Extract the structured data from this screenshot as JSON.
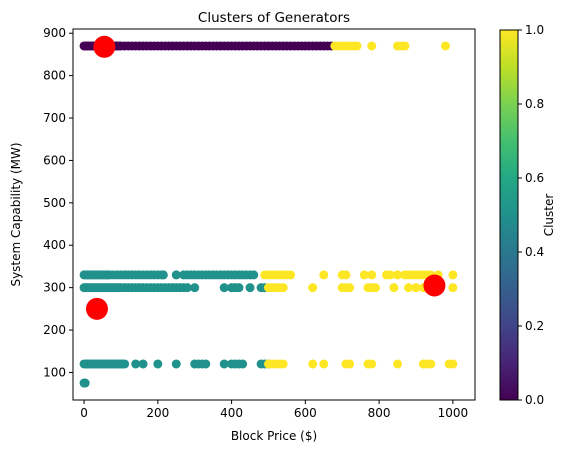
{
  "chart_data": {
    "type": "scatter",
    "title": "Clusters of Generators",
    "xlabel": "Block Price ($)",
    "ylabel": "System Capability (MW)",
    "xlim": [
      -30,
      1060
    ],
    "ylim": [
      35,
      910
    ],
    "xticks": [
      0,
      200,
      400,
      600,
      800,
      1000
    ],
    "xtick_labels": [
      "0",
      "200",
      "400",
      "600",
      "800",
      "1000"
    ],
    "yticks": [
      100,
      200,
      300,
      400,
      500,
      600,
      700,
      800,
      900
    ],
    "ytick_labels": [
      "100",
      "200",
      "300",
      "400",
      "500",
      "600",
      "700",
      "800",
      "900"
    ],
    "grid": false,
    "colorbar": {
      "label": "Cluster",
      "colormap": "viridis",
      "range": [
        0.0,
        1.0
      ],
      "ticks": [
        0.0,
        0.2,
        0.4,
        0.6,
        0.8,
        1.0
      ],
      "tick_labels": [
        "0.0",
        "0.2",
        "0.4",
        "0.6",
        "0.8",
        "1.0"
      ]
    },
    "colors": {
      "cluster_0": "#440154",
      "cluster_1": "#21918c",
      "cluster_2": "#fde725",
      "centroid": "#ff0000"
    },
    "series": [
      {
        "cluster": 0,
        "x": [
          0,
          5,
          10,
          15,
          20,
          25,
          30,
          35,
          40,
          45,
          50,
          55,
          60,
          65,
          70,
          75,
          80,
          85,
          90,
          95,
          100,
          110,
          120,
          130,
          140,
          150,
          160,
          170,
          180,
          190,
          200,
          210,
          220,
          230,
          240,
          250,
          260,
          270,
          280,
          290,
          300,
          310,
          320,
          330,
          340,
          350,
          360,
          370,
          380,
          390,
          400,
          410,
          420,
          430,
          440,
          450,
          460,
          470,
          480,
          490,
          500,
          510,
          520,
          530,
          540,
          550,
          560,
          570,
          580,
          590,
          600,
          610,
          620,
          630,
          640,
          650,
          660,
          670
        ],
        "y": [
          870,
          870,
          870,
          870,
          870,
          870,
          870,
          870,
          870,
          870,
          870,
          870,
          870,
          870,
          870,
          870,
          870,
          870,
          870,
          870,
          870,
          870,
          870,
          870,
          870,
          870,
          870,
          870,
          870,
          870,
          870,
          870,
          870,
          870,
          870,
          870,
          870,
          870,
          870,
          870,
          870,
          870,
          870,
          870,
          870,
          870,
          870,
          870,
          870,
          870,
          870,
          870,
          870,
          870,
          870,
          870,
          870,
          870,
          870,
          870,
          870,
          870,
          870,
          870,
          870,
          870,
          870,
          870,
          870,
          870,
          870,
          870,
          870,
          870,
          870,
          870,
          870,
          870
        ]
      },
      {
        "cluster": 1,
        "x": [
          0,
          5,
          10,
          15,
          20,
          25,
          30,
          35,
          40,
          45,
          50,
          55,
          60,
          65,
          70,
          80,
          90,
          100,
          110,
          120,
          130,
          140,
          150,
          160,
          170,
          180,
          190,
          200,
          210,
          215,
          250,
          270,
          280,
          290,
          300,
          310,
          320,
          330,
          340,
          350,
          360,
          370,
          380,
          390,
          400,
          410,
          420,
          430,
          440,
          450,
          460,
          0,
          5,
          10,
          15,
          20,
          25,
          30,
          35,
          40,
          45,
          50,
          55,
          60,
          65,
          70,
          75,
          80,
          85,
          90,
          95,
          100,
          110,
          120,
          130,
          140,
          150,
          160,
          170,
          180,
          190,
          200,
          210,
          220,
          230,
          240,
          250,
          260,
          270,
          280,
          300,
          380,
          400,
          410,
          420,
          450,
          480,
          490,
          0,
          5,
          10,
          15,
          20,
          25,
          30,
          35,
          40,
          45,
          50,
          55,
          60,
          65,
          70,
          75,
          80,
          85,
          90,
          95,
          100,
          105,
          110,
          140,
          160,
          200,
          250,
          300,
          310,
          320,
          330,
          380,
          400,
          410,
          420,
          430,
          480,
          490,
          500,
          0,
          3
        ],
        "y": [
          330,
          330,
          330,
          330,
          330,
          330,
          330,
          330,
          330,
          330,
          330,
          330,
          330,
          330,
          330,
          330,
          330,
          330,
          330,
          330,
          330,
          330,
          330,
          330,
          330,
          330,
          330,
          330,
          330,
          330,
          330,
          330,
          330,
          330,
          330,
          330,
          330,
          330,
          330,
          330,
          330,
          330,
          330,
          330,
          330,
          330,
          330,
          330,
          330,
          330,
          330,
          300,
          300,
          300,
          300,
          300,
          300,
          300,
          300,
          300,
          300,
          300,
          300,
          300,
          300,
          300,
          300,
          300,
          300,
          300,
          300,
          300,
          300,
          300,
          300,
          300,
          300,
          300,
          300,
          300,
          300,
          300,
          300,
          300,
          300,
          300,
          300,
          300,
          300,
          300,
          300,
          300,
          300,
          300,
          300,
          300,
          300,
          300,
          120,
          120,
          120,
          120,
          120,
          120,
          120,
          120,
          120,
          120,
          120,
          120,
          120,
          120,
          120,
          120,
          120,
          120,
          120,
          120,
          120,
          120,
          120,
          120,
          120,
          120,
          120,
          120,
          120,
          120,
          120,
          120,
          120,
          120,
          120,
          120,
          120,
          120,
          120,
          75,
          75
        ]
      },
      {
        "cluster": 2,
        "x": [
          680,
          690,
          700,
          710,
          720,
          730,
          740,
          780,
          850,
          860,
          870,
          980,
          490,
          500,
          510,
          520,
          530,
          540,
          550,
          560,
          650,
          700,
          710,
          760,
          780,
          820,
          830,
          850,
          870,
          880,
          890,
          900,
          910,
          920,
          930,
          940,
          960,
          1000,
          500,
          510,
          520,
          530,
          540,
          620,
          700,
          710,
          720,
          770,
          780,
          790,
          840,
          880,
          900,
          920,
          950,
          1000,
          500,
          510,
          520,
          530,
          540,
          620,
          650,
          710,
          720,
          770,
          780,
          850,
          920,
          930,
          940,
          990,
          1000
        ],
        "y": [
          870,
          870,
          870,
          870,
          870,
          870,
          870,
          870,
          870,
          870,
          870,
          870,
          330,
          330,
          330,
          330,
          330,
          330,
          330,
          330,
          330,
          330,
          330,
          330,
          330,
          330,
          330,
          330,
          330,
          330,
          330,
          330,
          330,
          330,
          330,
          330,
          330,
          330,
          300,
          300,
          300,
          300,
          300,
          300,
          300,
          300,
          300,
          300,
          300,
          300,
          300,
          300,
          300,
          300,
          300,
          300,
          120,
          120,
          120,
          120,
          120,
          120,
          120,
          120,
          120,
          120,
          120,
          120,
          120,
          120,
          120,
          120,
          120
        ]
      }
    ],
    "centroids": {
      "x": [
        55,
        35,
        950
      ],
      "y": [
        868,
        250,
        305
      ]
    }
  }
}
